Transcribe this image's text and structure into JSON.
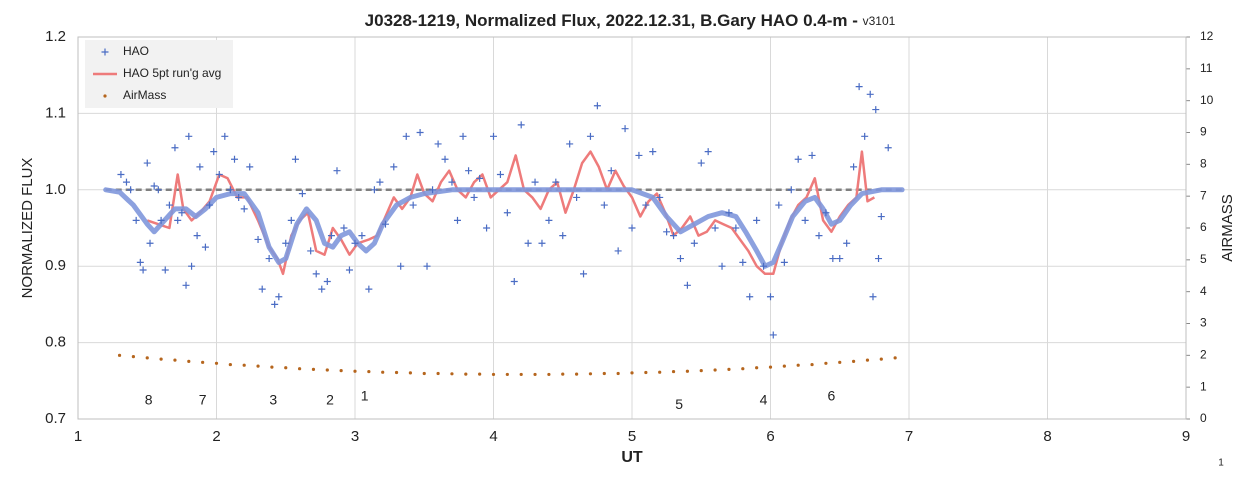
{
  "chart_data": {
    "type": "scatter",
    "title": "J0328-1219, Normalized Flux, 2022.12.31, B.Gary HAO 0.4-m - ",
    "version": "v3101",
    "x_label": "UT",
    "y_label": "NORMALIZED FLUX",
    "y2_label": "AIRMASS",
    "corner_label": "1",
    "xlim": [
      1,
      9
    ],
    "xticks": [
      1,
      2,
      3,
      4,
      5,
      6,
      7,
      8,
      9
    ],
    "ylim": [
      0.7,
      1.2
    ],
    "yticks": [
      0.7,
      0.8,
      0.9,
      {
        "value": 1,
        "label": "1.0"
      },
      1.1,
      1.2
    ],
    "y2lim": [
      0,
      12
    ],
    "y2ticks": [
      0,
      1,
      2,
      3,
      4,
      5,
      6,
      7,
      8,
      9,
      10,
      11,
      12
    ],
    "grid": true,
    "legend": "top-left",
    "series": [
      {
        "name": "HAO",
        "kind": "marker",
        "color": "#4a6cc4",
        "x": [
          1.31,
          1.35,
          1.38,
          1.42,
          1.45,
          1.47,
          1.5,
          1.52,
          1.55,
          1.58,
          1.6,
          1.63,
          1.66,
          1.7,
          1.72,
          1.75,
          1.78,
          1.8,
          1.82,
          1.86,
          1.88,
          1.92,
          1.95,
          1.98,
          2.02,
          2.06,
          2.1,
          2.13,
          2.16,
          2.2,
          2.24,
          2.3,
          2.33,
          2.38,
          2.42,
          2.45,
          2.5,
          2.54,
          2.57,
          2.62,
          2.68,
          2.72,
          2.76,
          2.8,
          2.83,
          2.87,
          2.92,
          2.96,
          3.0,
          3.05,
          3.1,
          3.14,
          3.18,
          3.22,
          3.28,
          3.33,
          3.37,
          3.42,
          3.47,
          3.52,
          3.56,
          3.6,
          3.65,
          3.7,
          3.74,
          3.78,
          3.82,
          3.86,
          3.9,
          3.95,
          4.0,
          4.05,
          4.1,
          4.15,
          4.2,
          4.25,
          4.3,
          4.35,
          4.4,
          4.45,
          4.5,
          4.55,
          4.6,
          4.65,
          4.7,
          4.75,
          4.8,
          4.85,
          4.9,
          4.95,
          5.0,
          5.05,
          5.1,
          5.15,
          5.2,
          5.25,
          5.3,
          5.35,
          5.4,
          5.45,
          5.5,
          5.55,
          5.6,
          5.65,
          5.7,
          5.75,
          5.8,
          5.85,
          5.9,
          5.95,
          6.0,
          6.02,
          6.06,
          6.1,
          6.15,
          6.2,
          6.25,
          6.3,
          6.35,
          6.4,
          6.45,
          6.5,
          6.55,
          6.6,
          6.64,
          6.68,
          6.72,
          6.74,
          6.76,
          6.78,
          6.8,
          6.85
        ],
        "values": [
          1.02,
          1.01,
          1.0,
          0.96,
          0.905,
          0.895,
          1.035,
          0.93,
          1.005,
          1.0,
          0.96,
          0.895,
          0.98,
          1.055,
          0.96,
          0.97,
          0.875,
          1.07,
          0.9,
          0.94,
          1.03,
          0.925,
          0.98,
          1.05,
          1.02,
          1.07,
          1.0,
          1.04,
          0.99,
          0.975,
          1.03,
          0.935,
          0.87,
          0.91,
          0.85,
          0.86,
          0.93,
          0.96,
          1.04,
          0.995,
          0.92,
          0.89,
          0.87,
          0.88,
          0.94,
          1.025,
          0.95,
          0.895,
          0.93,
          0.94,
          0.87,
          1.0,
          1.01,
          0.955,
          1.03,
          0.9,
          1.07,
          0.98,
          1.075,
          0.9,
          1.0,
          1.06,
          1.04,
          1.01,
          0.96,
          1.07,
          1.025,
          0.99,
          1.015,
          0.95,
          1.07,
          1.02,
          0.97,
          0.88,
          1.085,
          0.93,
          1.01,
          0.93,
          0.96,
          1.01,
          0.94,
          1.06,
          0.99,
          0.89,
          1.07,
          1.11,
          0.98,
          1.025,
          0.92,
          1.08,
          0.95,
          1.045,
          0.98,
          1.05,
          0.99,
          0.945,
          0.94,
          0.91,
          0.875,
          0.93,
          1.035,
          1.05,
          0.95,
          0.9,
          0.97,
          0.95,
          0.905,
          0.86,
          0.96,
          0.9,
          0.86,
          0.81,
          0.98,
          0.905,
          1.0,
          1.04,
          0.96,
          1.045,
          0.94,
          0.97,
          0.91,
          0.91,
          0.93,
          1.03,
          1.135,
          1.07,
          1.125,
          0.86,
          1.105,
          0.91,
          0.965,
          1.055
        ]
      },
      {
        "name": "HAO 5pt run'g avg",
        "kind": "line",
        "color": "#ee7b7b",
        "x": [
          1.5,
          1.58,
          1.66,
          1.72,
          1.76,
          1.82,
          1.88,
          1.95,
          2.02,
          2.08,
          2.15,
          2.22,
          2.3,
          2.38,
          2.44,
          2.48,
          2.54,
          2.6,
          2.66,
          2.72,
          2.78,
          2.84,
          2.9,
          2.96,
          3.02,
          3.1,
          3.16,
          3.22,
          3.28,
          3.34,
          3.4,
          3.45,
          3.5,
          3.56,
          3.62,
          3.68,
          3.74,
          3.8,
          3.86,
          3.92,
          3.98,
          4.04,
          4.1,
          4.16,
          4.22,
          4.28,
          4.34,
          4.4,
          4.46,
          4.52,
          4.58,
          4.64,
          4.7,
          4.76,
          4.82,
          4.88,
          4.94,
          5.0,
          5.06,
          5.12,
          5.18,
          5.24,
          5.3,
          5.36,
          5.42,
          5.48,
          5.54,
          5.6,
          5.66,
          5.72,
          5.78,
          5.84,
          5.9,
          5.96,
          6.02,
          6.08,
          6.14,
          6.2,
          6.26,
          6.32,
          6.38,
          6.44,
          6.5,
          6.56,
          6.62,
          6.66,
          6.7,
          6.75
        ],
        "values": [
          0.96,
          0.955,
          0.95,
          1.02,
          0.975,
          0.96,
          0.97,
          0.985,
          1.02,
          1.015,
          0.99,
          0.99,
          0.96,
          0.925,
          0.91,
          0.89,
          0.94,
          0.96,
          0.97,
          0.92,
          0.915,
          0.95,
          0.935,
          0.915,
          0.93,
          0.935,
          0.94,
          0.965,
          0.99,
          0.975,
          0.99,
          1.02,
          0.995,
          0.985,
          1.01,
          1.025,
          1.0,
          0.99,
          1.01,
          1.02,
          0.99,
          1.0,
          1.01,
          1.045,
          1.0,
          0.99,
          0.975,
          1.0,
          1.01,
          0.97,
          1.0,
          1.035,
          1.05,
          1.03,
          1.0,
          1.025,
          1.005,
          0.99,
          0.965,
          0.985,
          0.995,
          0.97,
          0.94,
          0.95,
          0.965,
          0.94,
          0.945,
          0.96,
          0.955,
          0.95,
          0.935,
          0.92,
          0.9,
          0.89,
          0.89,
          0.93,
          0.96,
          0.98,
          0.99,
          1.015,
          0.96,
          0.945,
          0.965,
          0.98,
          0.99,
          1.05,
          0.985,
          0.99
        ]
      },
      {
        "name": "AirMass",
        "kind": "dot",
        "color": "#b5651d",
        "axis": "y2",
        "x": [
          1.3,
          1.4,
          1.5,
          1.6,
          1.7,
          1.8,
          1.9,
          2.0,
          2.1,
          2.2,
          2.3,
          2.4,
          2.5,
          2.6,
          2.7,
          2.8,
          2.9,
          3.0,
          3.1,
          3.2,
          3.3,
          3.4,
          3.5,
          3.6,
          3.7,
          3.8,
          3.9,
          4.0,
          4.1,
          4.2,
          4.3,
          4.4,
          4.5,
          4.6,
          4.7,
          4.8,
          4.9,
          5.0,
          5.1,
          5.2,
          5.3,
          5.4,
          5.5,
          5.6,
          5.7,
          5.8,
          5.9,
          6.0,
          6.1,
          6.2,
          6.3,
          6.4,
          6.5,
          6.6,
          6.7,
          6.8,
          6.9
        ],
        "values": [
          2.0,
          1.96,
          1.92,
          1.88,
          1.85,
          1.81,
          1.78,
          1.75,
          1.71,
          1.69,
          1.66,
          1.63,
          1.61,
          1.58,
          1.56,
          1.54,
          1.52,
          1.5,
          1.49,
          1.47,
          1.46,
          1.45,
          1.43,
          1.43,
          1.42,
          1.41,
          1.41,
          1.4,
          1.4,
          1.4,
          1.4,
          1.4,
          1.41,
          1.41,
          1.42,
          1.43,
          1.43,
          1.45,
          1.46,
          1.47,
          1.49,
          1.5,
          1.52,
          1.54,
          1.56,
          1.58,
          1.61,
          1.63,
          1.66,
          1.69,
          1.71,
          1.75,
          1.78,
          1.81,
          1.85,
          1.88,
          1.92
        ]
      },
      {
        "kind": "thick",
        "color": "#7f97dc",
        "x": [
          1.2,
          1.3,
          1.4,
          1.5,
          1.55,
          1.6,
          1.7,
          1.78,
          1.85,
          1.92,
          2.0,
          2.1,
          2.2,
          2.3,
          2.38,
          2.45,
          2.5,
          2.58,
          2.65,
          2.72,
          2.78,
          2.84,
          2.9,
          2.96,
          3.02,
          3.08,
          3.14,
          3.2,
          3.3,
          3.4,
          3.5,
          3.7,
          4.0,
          4.5,
          5.0,
          5.15,
          5.25,
          5.35,
          5.45,
          5.55,
          5.65,
          5.75,
          5.82,
          5.9,
          5.96,
          6.02,
          6.08,
          6.16,
          6.25,
          6.32,
          6.38,
          6.44,
          6.5,
          6.58,
          6.66,
          6.8,
          6.95
        ],
        "values": [
          1.0,
          0.997,
          0.98,
          0.955,
          0.945,
          0.955,
          0.975,
          0.975,
          0.965,
          0.975,
          0.99,
          0.995,
          0.995,
          0.97,
          0.925,
          0.905,
          0.91,
          0.955,
          0.975,
          0.96,
          0.93,
          0.925,
          0.94,
          0.945,
          0.93,
          0.92,
          0.93,
          0.955,
          0.98,
          0.99,
          0.995,
          1.0,
          1.0,
          1.0,
          1.0,
          0.99,
          0.965,
          0.945,
          0.955,
          0.965,
          0.97,
          0.965,
          0.945,
          0.92,
          0.9,
          0.905,
          0.93,
          0.965,
          0.985,
          0.99,
          0.975,
          0.955,
          0.96,
          0.98,
          0.995,
          1.0,
          1.0
        ]
      },
      {
        "kind": "dashed",
        "color": "#7f7f7f",
        "x": [
          1.2,
          6.95
        ],
        "values": [
          1.0,
          1.0
        ]
      }
    ],
    "annotations": [
      {
        "text": "8",
        "x": 1.51,
        "y": 0.724
      },
      {
        "text": "7",
        "x": 1.9,
        "y": 0.724
      },
      {
        "text": "3",
        "x": 2.41,
        "y": 0.724
      },
      {
        "text": "2",
        "x": 2.82,
        "y": 0.724
      },
      {
        "text": "1",
        "x": 3.07,
        "y": 0.729
      },
      {
        "text": "5",
        "x": 5.34,
        "y": 0.718
      },
      {
        "text": "4",
        "x": 5.95,
        "y": 0.724
      },
      {
        "text": "6",
        "x": 6.44,
        "y": 0.729
      }
    ]
  }
}
